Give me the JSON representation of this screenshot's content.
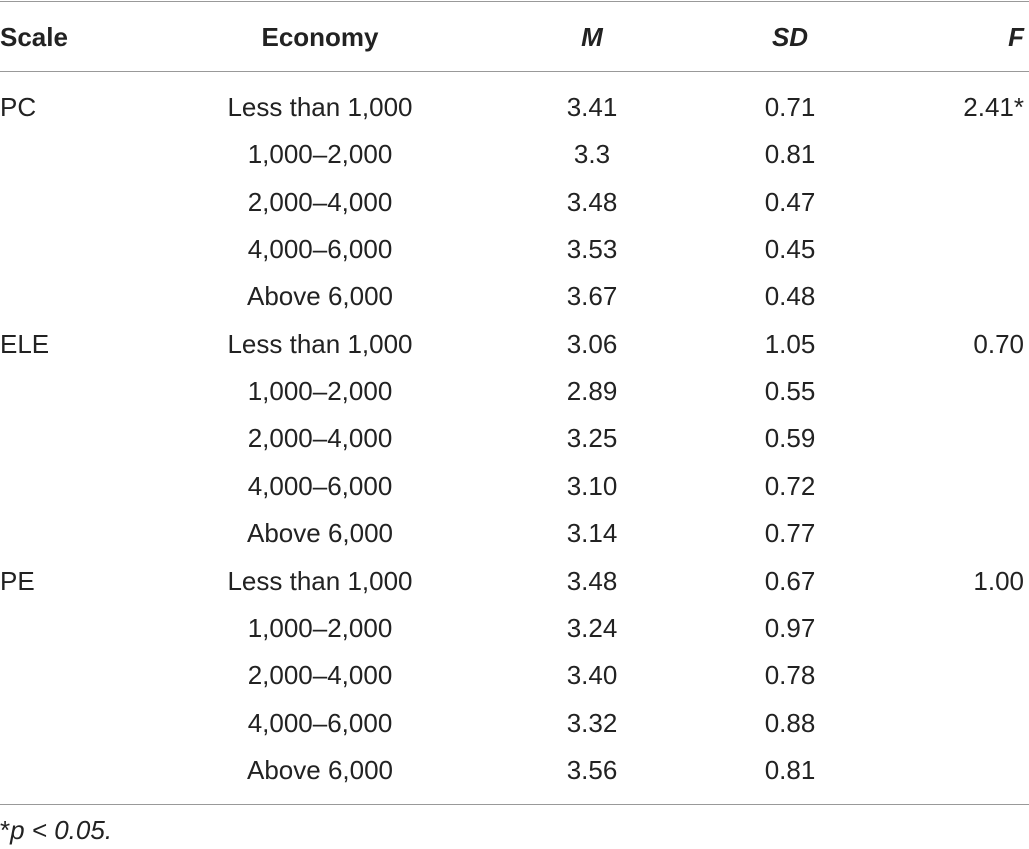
{
  "table": {
    "header": [
      "Scale",
      "Economy",
      "M",
      "SD",
      "F"
    ],
    "groups": [
      {
        "scale": "PC",
        "f": "2.41*",
        "rows": [
          {
            "economy": "Less than 1,000",
            "m": "3.41",
            "sd": "0.71"
          },
          {
            "economy": "1,000–2,000",
            "m": "3.3",
            "sd": "0.81"
          },
          {
            "economy": "2,000–4,000",
            "m": "3.48",
            "sd": "0.47"
          },
          {
            "economy": "4,000–6,000",
            "m": "3.53",
            "sd": "0.45"
          },
          {
            "economy": "Above 6,000",
            "m": "3.67",
            "sd": "0.48"
          }
        ]
      },
      {
        "scale": "ELE",
        "f": "0.70",
        "rows": [
          {
            "economy": "Less than 1,000",
            "m": "3.06",
            "sd": "1.05"
          },
          {
            "economy": "1,000–2,000",
            "m": "2.89",
            "sd": "0.55"
          },
          {
            "economy": "2,000–4,000",
            "m": "3.25",
            "sd": "0.59"
          },
          {
            "economy": "4,000–6,000",
            "m": "3.10",
            "sd": "0.72"
          },
          {
            "economy": "Above 6,000",
            "m": "3.14",
            "sd": "0.77"
          }
        ]
      },
      {
        "scale": "PE",
        "f": "1.00",
        "rows": [
          {
            "economy": "Less than 1,000",
            "m": "3.48",
            "sd": "0.67"
          },
          {
            "economy": "1,000–2,000",
            "m": "3.24",
            "sd": "0.97"
          },
          {
            "economy": "2,000–4,000",
            "m": "3.40",
            "sd": "0.78"
          },
          {
            "economy": "4,000–6,000",
            "m": "3.32",
            "sd": "0.88"
          },
          {
            "economy": "Above 6,000",
            "m": "3.56",
            "sd": "0.81"
          }
        ]
      }
    ]
  },
  "footnote": {
    "marker": "*",
    "text": "p < 0.05."
  }
}
